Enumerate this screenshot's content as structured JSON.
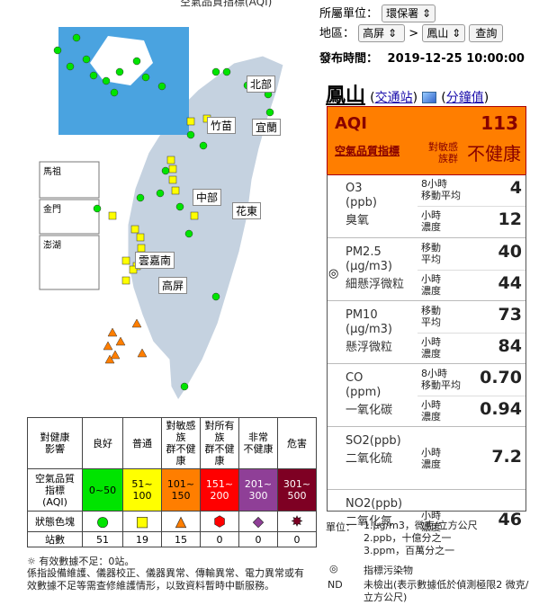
{
  "map": {
    "title": "空氣品質指標(AQI)",
    "regions": [
      "北部",
      "竹苗",
      "宜蘭",
      "中部",
      "花東",
      "雲嘉南",
      "高屏"
    ],
    "islands": [
      "馬祖",
      "金門",
      "澎湖"
    ]
  },
  "controls": {
    "agency_label": "所屬單位：",
    "agency_value": "環保署",
    "area_label": "地區：",
    "area_value": "高屏",
    "arrow": ">",
    "station_value": "鳳山",
    "query_button": "查詢",
    "publish_label": "發布時間：",
    "publish_time": "2019-12-25 10:00:00"
  },
  "station": {
    "name": "鳳山",
    "traffic_link": "交通站",
    "minute_link": "分鐘值",
    "paren_open": "(",
    "paren_close": ")"
  },
  "aqi": {
    "label": "AQI",
    "value": "113",
    "quality_label": "空氣品質指標",
    "group_label": "對敏感\n族群",
    "status": "不健康",
    "color": "#ff7e00"
  },
  "pollutants": [
    {
      "name1": "O3",
      "name2": "(ppb)",
      "name3": "臭氧",
      "l1": "8小時\n移動平均",
      "v1": "4",
      "l2": "小時\n濃度",
      "v2": "12"
    },
    {
      "name1": "PM2.5",
      "name2": "(μg/m3)",
      "name3": "細懸浮微粒",
      "l1": "移動\n平均",
      "v1": "40",
      "l2": "小時\n濃度",
      "v2": "44"
    },
    {
      "name1": "PM10",
      "name2": "(μg/m3)",
      "name3": "懸浮微粒",
      "l1": "移動\n平均",
      "v1": "73",
      "l2": "小時\n濃度",
      "v2": "84"
    },
    {
      "name1": "CO",
      "name2": "(ppm)",
      "name3": "一氧化碳",
      "l1": "8小時\n移動平均",
      "v1": "0.70",
      "l2": "小時\n濃度",
      "v2": "0.94"
    },
    {
      "name1": "SO2(ppb)",
      "name2": "二氧化硫",
      "name3": "",
      "l1": "小時\n濃度",
      "v1": "7.2",
      "l2": "",
      "v2": ""
    },
    {
      "name1": "NO2(ppb)",
      "name2": "二氧化氮",
      "name3": "",
      "l1": "小時\n濃度",
      "v1": "46",
      "l2": "",
      "v2": ""
    }
  ],
  "pm25_marker": "◎",
  "legend": {
    "header": [
      "對健康\n影響",
      "良好",
      "普通",
      "對敏感\n族\n群不健\n康",
      "對所有\n族\n群不健\n康",
      "非常\n不健康",
      "危害"
    ],
    "aqi_label": "空氣品質\n指標\n(AQI)",
    "ranges": [
      "0~50",
      "51~\n100",
      "101~\n150",
      "151~\n200",
      "201~\n300",
      "301~\n500"
    ],
    "colors": [
      "#00e400",
      "#ffff00",
      "#ff7e00",
      "#ff0000",
      "#8f3f97",
      "#7e0023"
    ],
    "range_text_colors": [
      "#00000",
      "#000000",
      "#000000",
      "#ffffff",
      "#ffffff",
      "#ffffff"
    ],
    "shape_label": "狀態色塊",
    "count_label": "站數",
    "counts": [
      "51",
      "19",
      "15",
      "0",
      "0",
      "0"
    ]
  },
  "notes": {
    "invalid": "有效數據不足：0站。",
    "invalid_icon": "☼",
    "maintenance": "係指設備維護、儀器校正、儀器異常、傳輸異常、電力異常或有效數據不足等需查修維護情形，以致資料暫時中斷服務。",
    "unit_label": "單位：",
    "unit1": "1.μg/m3，微克/立方公尺",
    "unit2": "2.ppb，十億分之一",
    "unit3": "3.ppm，百萬分之一",
    "marker_symbol": "◎",
    "marker_text": "指標污染物",
    "nd_label": "ND",
    "nd_text": "未檢出(表示數據低於偵測極限2 微克/立方公尺)"
  }
}
